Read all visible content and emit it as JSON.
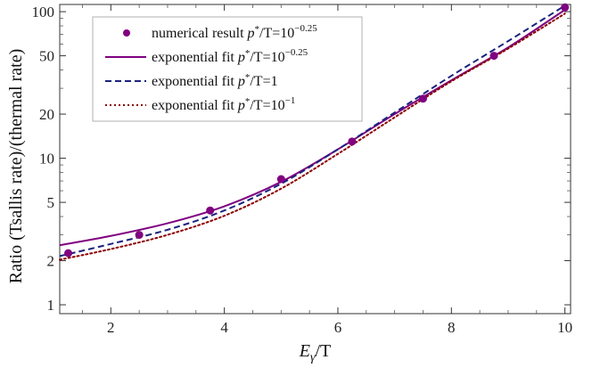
{
  "chart_data": {
    "type": "line",
    "xlabel": {
      "main": "E",
      "sub": "γ",
      "rest": "/T"
    },
    "ylabel": "Ratio (Tsallis rate)/(thermal rate)",
    "xlim": [
      1.1,
      10.1
    ],
    "ylim": [
      0.87,
      112
    ],
    "yscale": "log",
    "x_ticks": [
      2,
      4,
      6,
      8,
      10
    ],
    "y_ticks": [
      1,
      2,
      5,
      10,
      20,
      50,
      100
    ],
    "grid": false,
    "legend_position": "top-left",
    "series": [
      {
        "key": "numerical",
        "kind": "scatter",
        "color": "#800080",
        "legend": {
          "prefix": "numerical result ",
          "p": "p",
          "star": "*",
          "mid": "/T=10",
          "exp": "−0.25"
        },
        "x": [
          1.25,
          2.5,
          3.75,
          5.0,
          6.25,
          7.5,
          8.75,
          10.0
        ],
        "y": [
          2.25,
          3.0,
          4.4,
          7.2,
          13.0,
          25.5,
          50.0,
          107.0
        ]
      },
      {
        "key": "fit-m025",
        "kind": "line",
        "style": "solid",
        "color": "#800080",
        "legend": {
          "prefix": "exponential fit ",
          "p": "p",
          "star": "*",
          "mid": "/T=10",
          "exp": "−0.25"
        },
        "x": [
          1.1,
          2,
          3,
          4,
          5,
          6,
          7,
          8,
          9,
          10
        ],
        "y": [
          2.55,
          2.95,
          3.6,
          4.7,
          6.9,
          11.5,
          20.0,
          34.0,
          57.0,
          103.0
        ]
      },
      {
        "key": "fit-1",
        "kind": "line",
        "style": "dashed",
        "color": "#1a237e",
        "legend": {
          "prefix": "exponential fit ",
          "p": "p",
          "star": "*",
          "mid": "/T=1",
          "exp": ""
        },
        "x": [
          1.1,
          2,
          3,
          4,
          5,
          6,
          7,
          8,
          9,
          10
        ],
        "y": [
          2.15,
          2.6,
          3.25,
          4.4,
          6.7,
          11.5,
          20.5,
          36.5,
          63.0,
          110.0
        ]
      },
      {
        "key": "fit-m1",
        "kind": "line",
        "style": "dotted",
        "color": "#8b0000",
        "legend": {
          "prefix": "exponential fit ",
          "p": "p",
          "star": "*",
          "mid": "/T=10",
          "exp": "−1"
        },
        "x": [
          1.1,
          2,
          3,
          4,
          5,
          6,
          7,
          8,
          9,
          10
        ],
        "y": [
          2.03,
          2.4,
          3.0,
          4.05,
          6.2,
          10.7,
          19.0,
          33.5,
          56.0,
          97.0
        ]
      }
    ]
  }
}
